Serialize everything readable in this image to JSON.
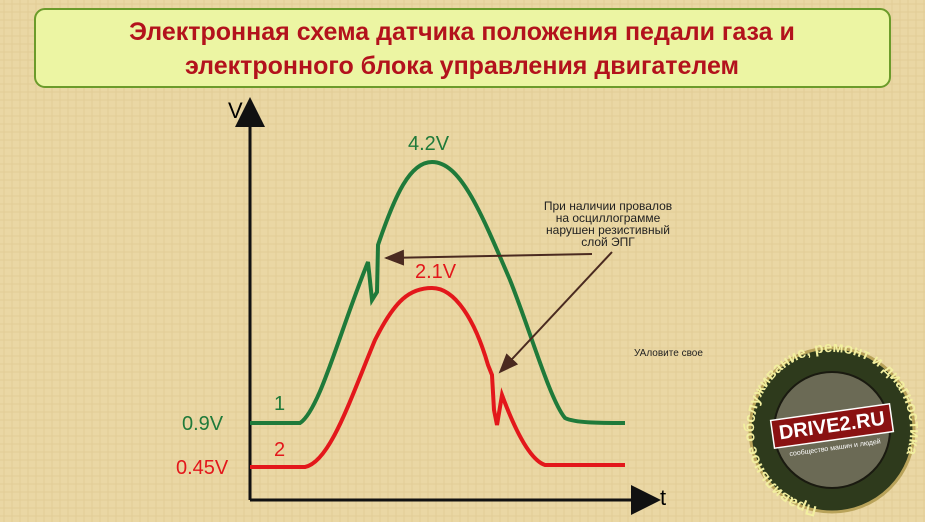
{
  "header": {
    "title_lines": [
      "Электронная схема датчика положения педали газа и",
      "электронного блока управления двигателем"
    ]
  },
  "axes": {
    "y": "V",
    "x": "t"
  },
  "curves": [
    {
      "number": "1",
      "min_label": "0.9V",
      "max_label": "4.2V"
    },
    {
      "number": "2",
      "min_label": "0.45V",
      "max_label": "2.1V"
    }
  ],
  "annotation_lines": [
    "При наличии провалов",
    "на осциллограмме",
    "нарушен резистивный",
    "слой ЭПГ"
  ],
  "note": "УАловите свое",
  "logo": {
    "brand": "DRIVE2.RU",
    "tagline": "сообщество машин и людей",
    "circle_text": "Правильное обслуживание, ремонт и диагностика"
  }
}
